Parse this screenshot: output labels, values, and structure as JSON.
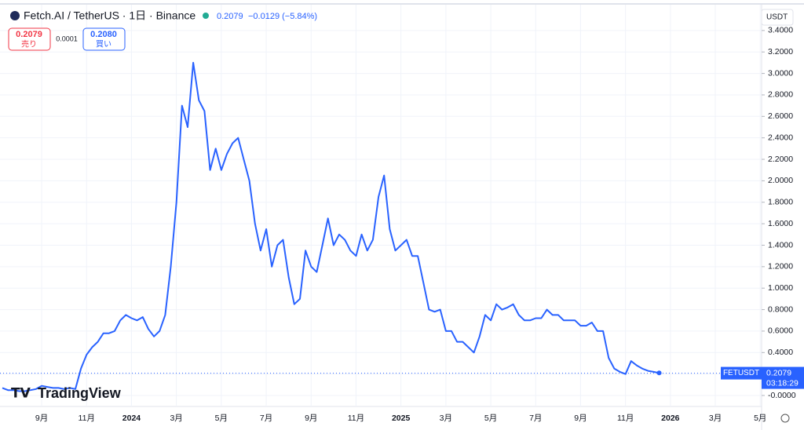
{
  "header": {
    "symbol": "Fetch.AI / TetherUS · 1日 · Binance",
    "price": 0.2079,
    "change": "−0.0129 (−5.84%)",
    "sell_price": "0.2079",
    "sell_label": "売り",
    "spread": "0.0001",
    "buy_price": "0.2080",
    "buy_label": "買い",
    "currency": "USDT",
    "logo": "TradingView"
  },
  "chart_data": {
    "type": "line",
    "categories": [
      null,
      null,
      null,
      null,
      null,
      null,
      null,
      "9月",
      null,
      null,
      null,
      null,
      null,
      null,
      null,
      "11月",
      null,
      null,
      null,
      null,
      null,
      null,
      null,
      "2024",
      null,
      null,
      null,
      null,
      null,
      null,
      null,
      "3月",
      null,
      null,
      null,
      null,
      null,
      null,
      null,
      "5月",
      null,
      null,
      null,
      null,
      null,
      null,
      null,
      "7月",
      null,
      null,
      null,
      null,
      null,
      null,
      null,
      "9月",
      null,
      null,
      null,
      null,
      null,
      null,
      null,
      "11月",
      null,
      null,
      null,
      null,
      null,
      null,
      null,
      "2025",
      null,
      null,
      null,
      null,
      null,
      null,
      null,
      "3月",
      null,
      null,
      null,
      null,
      null,
      null,
      null,
      "5月",
      null,
      null,
      null,
      null,
      null,
      null,
      null,
      "7月",
      null,
      null,
      null,
      null,
      null,
      null,
      null,
      "9月",
      null,
      null,
      null,
      null,
      null,
      null,
      null,
      "11月",
      null,
      null,
      null,
      null,
      null,
      null,
      null,
      "2026",
      null,
      null,
      null,
      null,
      null,
      null,
      null,
      "3月",
      null,
      null,
      null,
      null,
      null,
      null,
      null,
      "5月"
    ],
    "series": [
      {
        "name": "FETUSDT",
        "color": "#2962ff",
        "values": [
          0.07,
          0.05,
          0.05,
          0.04,
          0.04,
          0.05,
          0.06,
          0.09,
          0.08,
          0.07,
          0.07,
          0.06,
          0.07,
          0.06,
          0.25,
          0.38,
          0.45,
          0.5,
          0.58,
          0.58,
          0.6,
          0.7,
          0.75,
          0.72,
          0.7,
          0.73,
          0.62,
          0.55,
          0.6,
          0.75,
          1.2,
          1.8,
          2.7,
          2.5,
          3.1,
          2.75,
          2.65,
          2.1,
          2.3,
          2.1,
          2.25,
          2.35,
          2.4,
          2.2,
          2.0,
          1.6,
          1.35,
          1.55,
          1.2,
          1.4,
          1.45,
          1.1,
          0.85,
          0.9,
          1.35,
          1.2,
          1.15,
          1.4,
          1.65,
          1.4,
          1.5,
          1.45,
          1.35,
          1.3,
          1.5,
          1.35,
          1.45,
          1.85,
          2.05,
          1.55,
          1.35,
          1.4,
          1.45,
          1.3,
          1.3,
          1.05,
          0.8,
          0.78,
          0.8,
          0.6,
          0.6,
          0.5,
          0.5,
          0.45,
          0.4,
          0.55,
          0.75,
          0.7,
          0.85,
          0.8,
          0.82,
          0.85,
          0.75,
          0.7,
          0.7,
          0.72,
          0.72,
          0.8,
          0.75,
          0.75,
          0.7,
          0.7,
          0.7,
          0.65,
          0.65,
          0.68,
          0.6,
          0.6,
          0.35,
          0.25,
          0.22,
          0.2,
          0.32,
          0.28,
          0.25,
          0.23,
          0.22,
          0.21,
          null,
          null,
          null,
          null,
          null,
          null,
          null,
          null,
          null,
          null,
          null,
          null,
          null,
          null,
          null,
          null,
          null,
          null
        ]
      }
    ],
    "ylim": [
      -0.1,
      3.6
    ],
    "yticks": [
      {
        "value": 0,
        "label": "-0.0000"
      },
      {
        "value": 0.2,
        "label": "0.2000"
      },
      {
        "value": 0.4,
        "label": "0.4000"
      },
      {
        "value": 0.6,
        "label": "0.6000"
      },
      {
        "value": 0.8,
        "label": "0.8000"
      },
      {
        "value": 1,
        "label": "1.0000"
      },
      {
        "value": 1.2,
        "label": "1.2000"
      },
      {
        "value": 1.4,
        "label": "1.4000"
      },
      {
        "value": 1.6,
        "label": "1.6000"
      },
      {
        "value": 1.8,
        "label": "1.8000"
      },
      {
        "value": 2,
        "label": "2.0000"
      },
      {
        "value": 2.2,
        "label": "2.2000"
      },
      {
        "value": 2.4,
        "label": "2.4000"
      },
      {
        "value": 2.6,
        "label": "2.6000"
      },
      {
        "value": 2.8,
        "label": "2.8000"
      },
      {
        "value": 3,
        "label": "3.0000"
      },
      {
        "value": 3.2,
        "label": "3.2000"
      },
      {
        "value": 3.4,
        "label": "3.4000"
      }
    ],
    "grid": true,
    "last_price": 0.2079,
    "countdown": "03:18:29"
  }
}
